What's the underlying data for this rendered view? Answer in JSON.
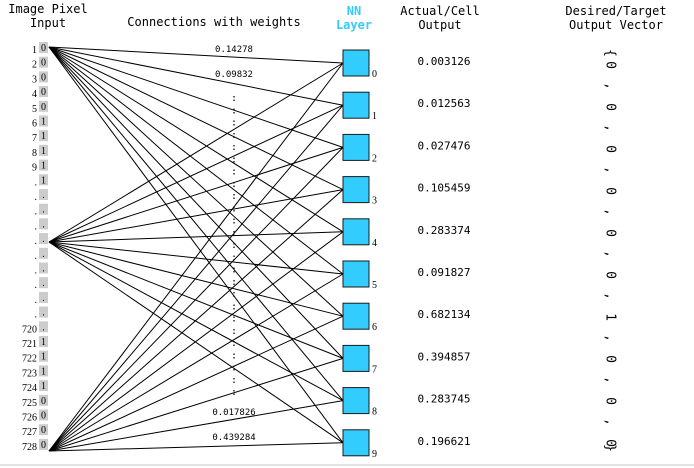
{
  "headers": {
    "input_line1": "Image Pixel",
    "input_line2": "Input",
    "connections": "Connections with weights",
    "nn_line1": "NN",
    "nn_line2": "Layer",
    "actual_line1": "Actual/Cell",
    "actual_line2": "Output",
    "desired_line1": "Desired/Target",
    "desired_line2": "Output Vector"
  },
  "colors": {
    "nn_header": "#33ccff",
    "neuron_fill": "#33ccff",
    "pixel_box_fill": "#cccccc"
  },
  "pixels": [
    {
      "label": "1",
      "value": "0"
    },
    {
      "label": "2",
      "value": "0"
    },
    {
      "label": "3",
      "value": "0"
    },
    {
      "label": "4",
      "value": "0"
    },
    {
      "label": "5",
      "value": "0"
    },
    {
      "label": "6",
      "value": "1"
    },
    {
      "label": "7",
      "value": "1"
    },
    {
      "label": "8",
      "value": "1"
    },
    {
      "label": "9",
      "value": "1"
    },
    {
      "label": ".",
      "value": "1"
    },
    {
      "label": ".",
      "value": "."
    },
    {
      "label": ".",
      "value": "."
    },
    {
      "label": ".",
      "value": "."
    },
    {
      "label": ".",
      "value": "."
    },
    {
      "label": ".",
      "value": "."
    },
    {
      "label": ".",
      "value": "."
    },
    {
      "label": ".",
      "value": "."
    },
    {
      "label": ".",
      "value": "."
    },
    {
      "label": ".",
      "value": "."
    },
    {
      "label": "720",
      "value": "."
    },
    {
      "label": "721",
      "value": "1"
    },
    {
      "label": "722",
      "value": "1"
    },
    {
      "label": "723",
      "value": "1"
    },
    {
      "label": "724",
      "value": "1"
    },
    {
      "label": "725",
      "value": "0"
    },
    {
      "label": "726",
      "value": "0"
    },
    {
      "label": "727",
      "value": "0"
    },
    {
      "label": "728",
      "value": "0"
    }
  ],
  "weights": [
    "0.14278",
    "0.09832",
    "0.017826",
    "0.439284"
  ],
  "weight_dots": ":",
  "neurons": [
    {
      "label": "0",
      "output": "0.003126"
    },
    {
      "label": "1",
      "output": "0.012563"
    },
    {
      "label": "2",
      "output": "0.027476"
    },
    {
      "label": "3",
      "output": "0.105459"
    },
    {
      "label": "4",
      "output": "0.283374"
    },
    {
      "label": "5",
      "output": "0.091827"
    },
    {
      "label": "6",
      "output": "0.682134"
    },
    {
      "label": "7",
      "output": "0.394857"
    },
    {
      "label": "8",
      "output": "0.283745"
    },
    {
      "label": "9",
      "output": "0.196621"
    }
  ],
  "target_vector": {
    "open": "{",
    "close": "}",
    "separator": ",",
    "values": [
      "0",
      "0",
      "0",
      "0",
      "0",
      "0",
      "1",
      "0",
      "0",
      "0"
    ]
  }
}
